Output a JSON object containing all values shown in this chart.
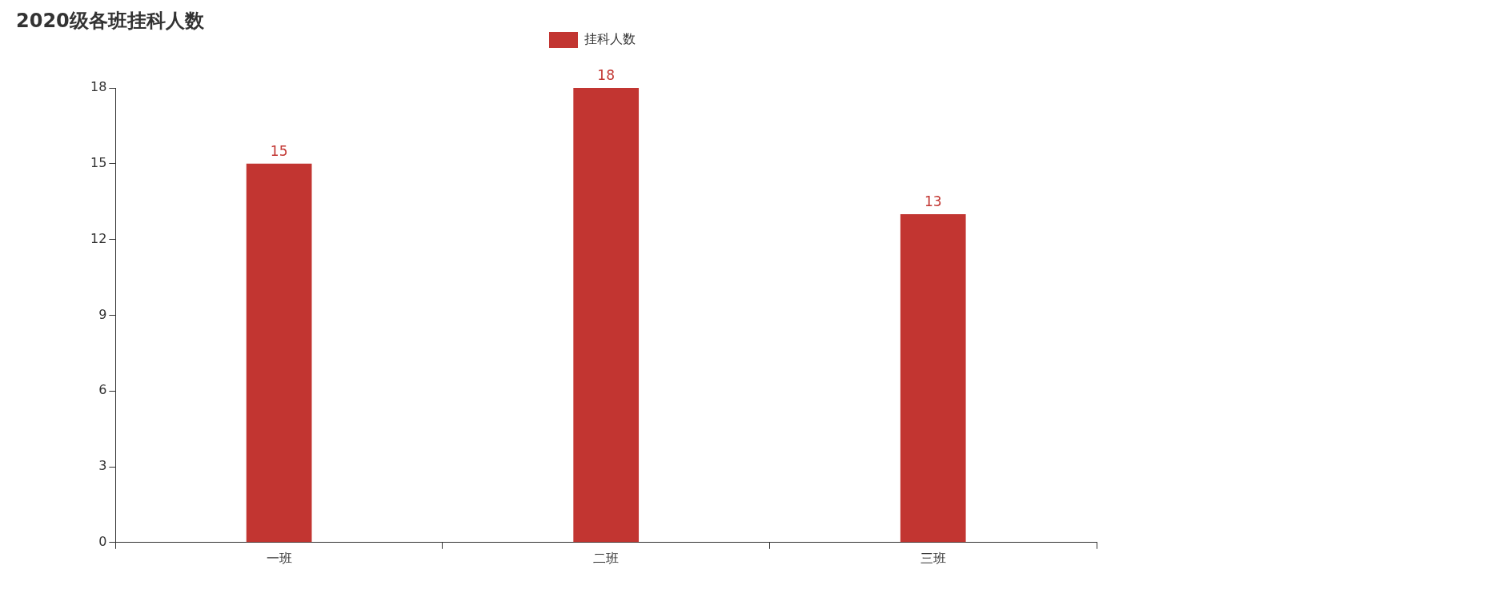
{
  "chart_data": {
    "type": "bar",
    "title": "2020级各班挂科人数",
    "categories": [
      "一班",
      "二班",
      "三班"
    ],
    "series": [
      {
        "name": "挂科人数",
        "color": "#c23531",
        "values": [
          15,
          18,
          13
        ]
      }
    ],
    "ylim": [
      0,
      18
    ],
    "yticks": [
      0,
      3,
      6,
      9,
      12,
      15,
      18
    ],
    "grid": false,
    "legend": "top",
    "data_labels": true
  }
}
